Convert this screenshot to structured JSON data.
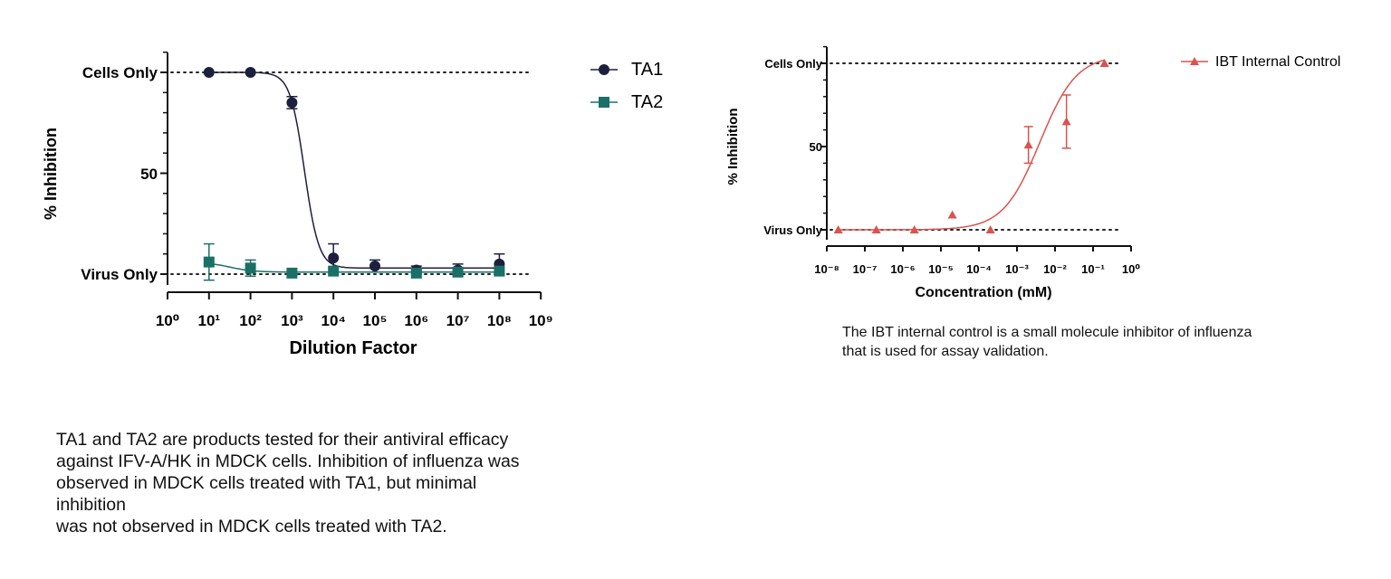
{
  "charts": [
    {
      "type": "line",
      "xlabel": "Dilution Factor",
      "ylabel": "% Inhibition",
      "x_scale": "log10",
      "xlim": [
        1,
        1000000000
      ],
      "ylim": [
        0,
        100
      ],
      "x_ticks": [
        "10⁰",
        "10¹",
        "10²",
        "10³",
        "10⁴",
        "10⁵",
        "10⁶",
        "10⁷",
        "10⁸",
        "10⁹"
      ],
      "y_ticks": [
        {
          "value": 100,
          "label": "Cells Only"
        },
        {
          "value": 50,
          "label": "50"
        },
        {
          "value": 0,
          "label": "Virus Only"
        }
      ],
      "reference_lines": [
        0,
        100
      ],
      "legend_position": "right",
      "series": [
        {
          "name": "TA1",
          "color": "#1e1f3d",
          "marker": "circle",
          "x": [
            10,
            100,
            1000,
            10000,
            100000,
            1000000,
            10000000,
            100000000
          ],
          "y": [
            100,
            100,
            85,
            8,
            4,
            2,
            2,
            5
          ],
          "error": [
            0,
            0,
            3,
            7,
            3,
            2,
            3,
            5
          ],
          "fit": {
            "top": 100,
            "bottom": 3,
            "log_ec50": 3.3,
            "hill": 2.5
          }
        },
        {
          "name": "TA2",
          "color": "#1a7066",
          "marker": "square",
          "x": [
            10,
            100,
            1000,
            10000,
            1000000,
            10000000,
            100000000
          ],
          "y": [
            6,
            3,
            0.5,
            1.5,
            0.5,
            1,
            1.5
          ],
          "error": [
            9,
            4,
            0,
            0,
            0,
            0,
            0
          ],
          "fit": {
            "top": 6,
            "bottom": 1,
            "log_ec50": 1.5,
            "hill": 1.5
          }
        }
      ]
    },
    {
      "type": "line",
      "xlabel": "Concentration (mM)",
      "ylabel": "% Inhibition",
      "x_scale": "log10",
      "xlim": [
        1e-08,
        1
      ],
      "ylim": [
        0,
        100
      ],
      "x_ticks": [
        "10⁻⁸",
        "10⁻⁷",
        "10⁻⁶",
        "10⁻⁵",
        "10⁻⁴",
        "10⁻³",
        "10⁻²",
        "10⁻¹",
        "10⁰"
      ],
      "y_ticks": [
        {
          "value": 100,
          "label": "Cells Only"
        },
        {
          "value": 50,
          "label": "50"
        },
        {
          "value": 0,
          "label": "Virus Only"
        }
      ],
      "reference_lines": [
        0,
        100
      ],
      "legend_position": "top-right",
      "series": [
        {
          "name": "IBT Internal Control",
          "color": "#d9534f",
          "marker": "triangle",
          "x": [
            2e-08,
            2e-07,
            2e-06,
            2e-05,
            0.0002,
            0.002,
            0.02,
            0.2
          ],
          "y": [
            0,
            0,
            0,
            9,
            0,
            51,
            65,
            100
          ],
          "error": [
            0,
            0,
            0,
            0,
            0,
            11,
            16,
            0
          ],
          "fit": {
            "top": 105,
            "bottom": 0,
            "log_ec50": -2.4,
            "hill": 0.9
          }
        }
      ]
    }
  ],
  "captions": {
    "left": [
      "TA1 and  TA2 are products tested for their antiviral efficacy",
      "against IFV-A/HK in MDCK cells. Inhibition of influenza was",
      "observed in MDCK cells treated with TA1, but minimal",
      "inhibition",
      "was not observed in MDCK cells treated with TA2."
    ],
    "right": [
      "The IBT internal control is a small molecule inhibitor of influenza",
      "that is used for assay validation."
    ]
  }
}
